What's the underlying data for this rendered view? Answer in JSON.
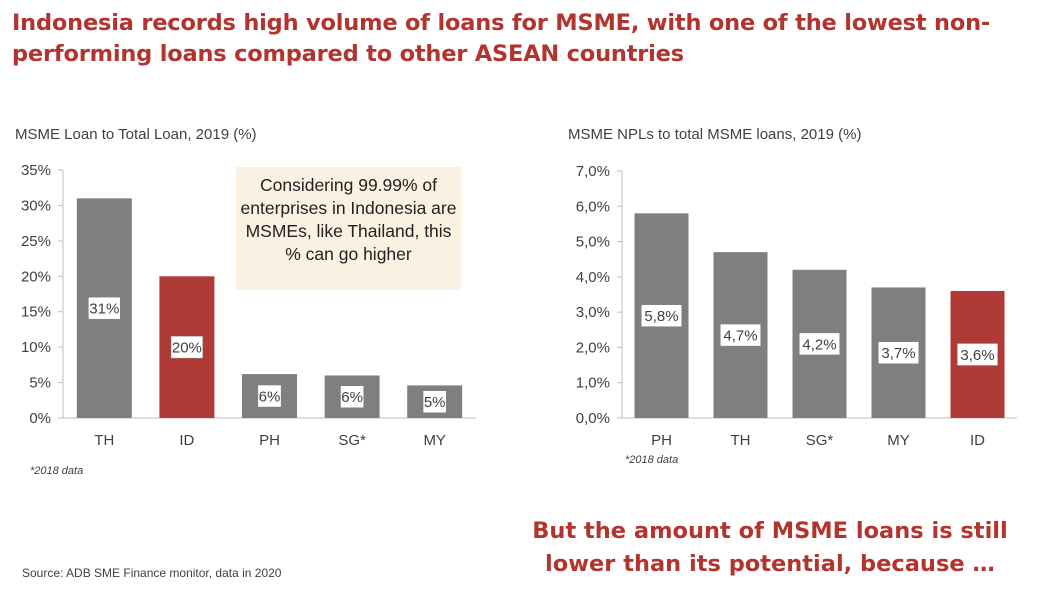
{
  "headline": "Indonesia records high volume of loans for MSME, with one of the lowest non-performing loans compared to other ASEAN countries",
  "callout": "Considering 99.99% of enterprises in Indonesia are MSMEs, like Thailand, this % can go higher",
  "conclusion": "But the amount of MSME loans is still lower than its potential, because …",
  "source": "Source: ADB SME Finance monitor, data in 2020",
  "colors": {
    "gray_bar": "#7f7f7f",
    "highlight_bar": "#b03a35",
    "title_red": "#b3342f",
    "callout_bg": "#fbf1e3"
  },
  "chart_data": [
    {
      "type": "bar",
      "title": "MSME Loan to Total Loan, 2019 (%)",
      "footnote": "*2018 data",
      "categories": [
        "TH",
        "ID",
        "PH",
        "SG*",
        "MY"
      ],
      "values": [
        31,
        20,
        6,
        6,
        5
      ],
      "bar_heights": [
        31,
        20,
        6.2,
        6,
        4.6
      ],
      "data_labels": [
        "31%",
        "20%",
        "6%",
        "6%",
        "5%"
      ],
      "highlight": "ID",
      "ylim": [
        0,
        35
      ],
      "yticks": [
        "0%",
        "5%",
        "10%",
        "15%",
        "20%",
        "25%",
        "30%",
        "35%"
      ],
      "grid": false
    },
    {
      "type": "bar",
      "title": "MSME NPLs to total MSME loans, 2019 (%)",
      "footnote": "*2018 data",
      "categories": [
        "PH",
        "TH",
        "SG*",
        "MY",
        "ID"
      ],
      "values": [
        5.8,
        4.7,
        4.2,
        3.7,
        3.6
      ],
      "data_labels": [
        "5,8%",
        "4,7%",
        "4,2%",
        "3,7%",
        "3,6%"
      ],
      "highlight": "ID",
      "ylim": [
        0,
        7
      ],
      "yticks": [
        "0,0%",
        "1,0%",
        "2,0%",
        "3,0%",
        "4,0%",
        "5,0%",
        "6,0%",
        "7,0%"
      ],
      "grid": false
    }
  ]
}
